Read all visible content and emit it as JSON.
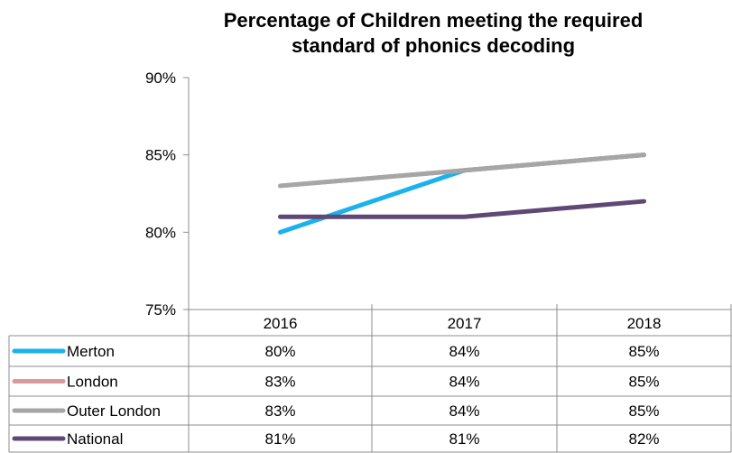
{
  "chart_data": {
    "type": "line",
    "title_lines": [
      "Percentage of Children meeting the required",
      "standard of phonics decoding"
    ],
    "categories": [
      "2016",
      "2017",
      "2018"
    ],
    "y_ticks": [
      "90%",
      "85%",
      "80%",
      "75%"
    ],
    "ylim": [
      75,
      90
    ],
    "series": [
      {
        "name": "Merton",
        "values": [
          80,
          84,
          85
        ],
        "labels": [
          "80%",
          "84%",
          "85%"
        ],
        "color": "#1BB2EC"
      },
      {
        "name": "London",
        "values": [
          83,
          84,
          85
        ],
        "labels": [
          "83%",
          "84%",
          "85%"
        ],
        "color": "#D89A9A"
      },
      {
        "name": "Outer London",
        "values": [
          83,
          84,
          85
        ],
        "labels": [
          "83%",
          "84%",
          "85%"
        ],
        "color": "#A6A6A6"
      },
      {
        "name": "National",
        "values": [
          81,
          81,
          82
        ],
        "labels": [
          "81%",
          "81%",
          "82%"
        ],
        "color": "#5F4876"
      }
    ]
  }
}
